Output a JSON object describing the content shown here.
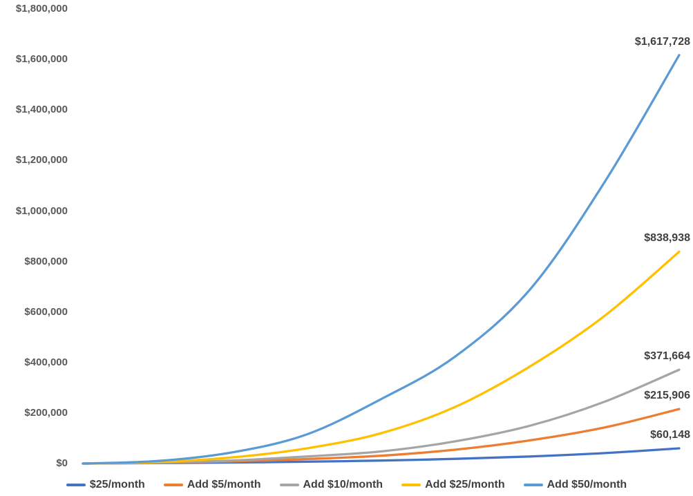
{
  "chart_data": {
    "type": "line",
    "title": "",
    "gridlines": false,
    "axis_lines_visible": false,
    "legend_position": "bottom",
    "background_color": "#ffffff",
    "x_points": [
      0,
      5,
      10,
      15,
      20,
      25,
      30,
      35,
      40
    ],
    "x_axis": {
      "label": "",
      "tick_labels_visible": false,
      "range": [
        0,
        40
      ]
    },
    "y_axis": {
      "label": "",
      "range": [
        0,
        1800000
      ],
      "tick_step": 200000,
      "tick_labels": [
        "$0",
        "$200,000",
        "$400,000",
        "$600,000",
        "$800,000",
        "$1,000,000",
        "$1,200,000",
        "$1,400,000",
        "$1,600,000",
        "$1,800,000"
      ],
      "label_color": "#595959"
    },
    "series": [
      {
        "name": "$25/month",
        "color": "#4472C4",
        "end_value": 60148,
        "end_label": "$60,148",
        "values": [
          0,
          1640,
          3970,
          7270,
          11900,
          18600,
          28000,
          41300,
          60148
        ]
      },
      {
        "name": "Add $5/month",
        "color": "#ED7D31",
        "end_value": 215906,
        "end_label": "$215,906",
        "values": [
          0,
          2600,
          8100,
          17800,
          31000,
          55000,
          91800,
          142700,
          215906
        ]
      },
      {
        "name": "Add $10/month",
        "color": "#A5A5A5",
        "end_value": 371664,
        "end_label": "$371,664",
        "values": [
          0,
          3300,
          11900,
          27800,
          48000,
          88000,
          150000,
          245000,
          371664
        ]
      },
      {
        "name": "Add $25/month",
        "color": "#FFC000",
        "end_value": 838938,
        "end_label": "$838,938",
        "values": [
          0,
          5800,
          24000,
          60000,
          120000,
          225000,
          385000,
          585000,
          838938
        ]
      },
      {
        "name": "Add $50/month",
        "color": "#5B9BD5",
        "end_value": 1617728,
        "end_label": "$1,617,728",
        "values": [
          0,
          10000,
          44000,
          115000,
          255000,
          425000,
          690000,
          1115000,
          1617728
        ]
      }
    ],
    "data_label_color": "#404040",
    "legend_label_color": "#404040"
  }
}
